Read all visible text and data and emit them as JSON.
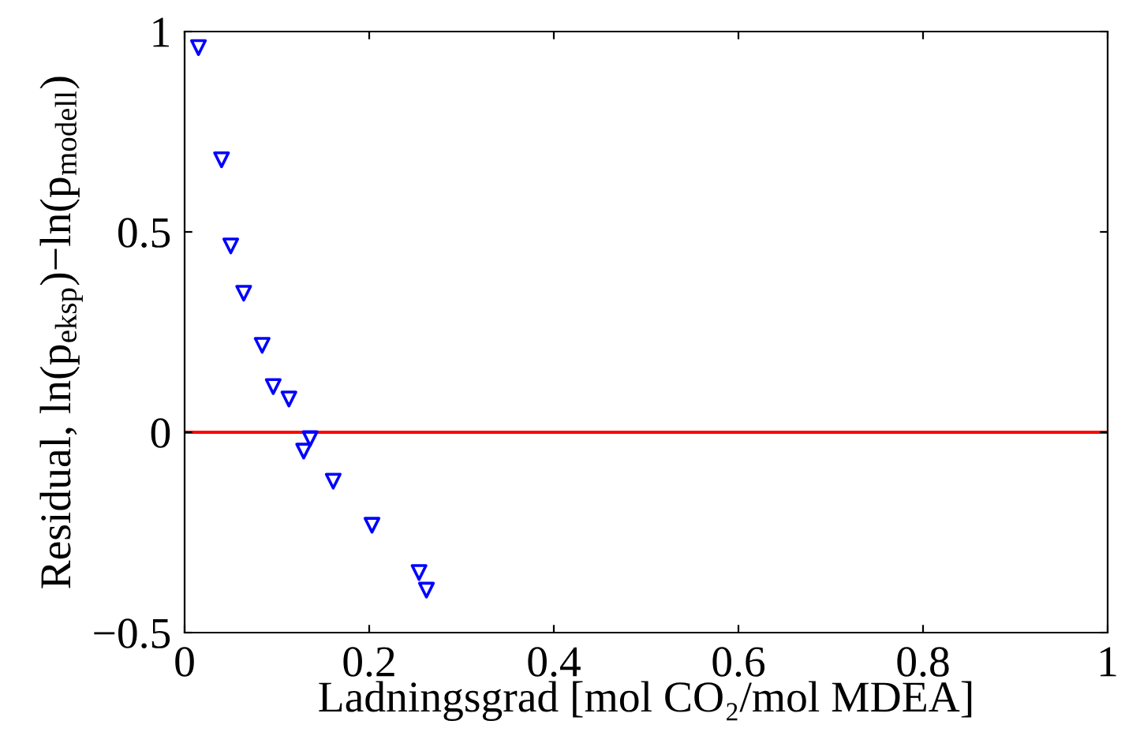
{
  "chart_data": {
    "type": "scatter",
    "xlabel": "Ladningsgrad [mol CO₂/mol MDEA]",
    "ylabel": "Residual, ln(p$_{eksp}$)−ln(p$_{modell}$)",
    "x": [
      0.015,
      0.04,
      0.05,
      0.064,
      0.084,
      0.096,
      0.113,
      0.136,
      0.129,
      0.161,
      0.203,
      0.254,
      0.262
    ],
    "series": [
      {
        "color": "#0000ff",
        "values": [
          0.96,
          0.68,
          0.465,
          0.347,
          0.217,
          0.114,
          0.083,
          -0.016,
          -0.047,
          -0.122,
          -0.232,
          -0.35,
          -0.394
        ]
      }
    ],
    "marker": "triangle",
    "xlim": [
      0,
      1
    ],
    "ylim": [
      -0.5,
      1
    ],
    "xticks": [
      0,
      {
        "value": 0.2,
        "label": "0.2"
      },
      {
        "value": 0.4,
        "label": "0.4"
      },
      {
        "value": 0.6,
        "label": "0.6"
      },
      {
        "value": 0.8,
        "label": "0.8"
      },
      1
    ],
    "yticks": [
      {
        "value": -0.5,
        "label": "−0.5"
      },
      0,
      {
        "value": 0.5,
        "label": "0.5"
      },
      1
    ],
    "ref_lines": [
      {
        "axis": "y",
        "value": 0,
        "color": "#ff0000"
      }
    ],
    "grid": false,
    "legend": false
  }
}
